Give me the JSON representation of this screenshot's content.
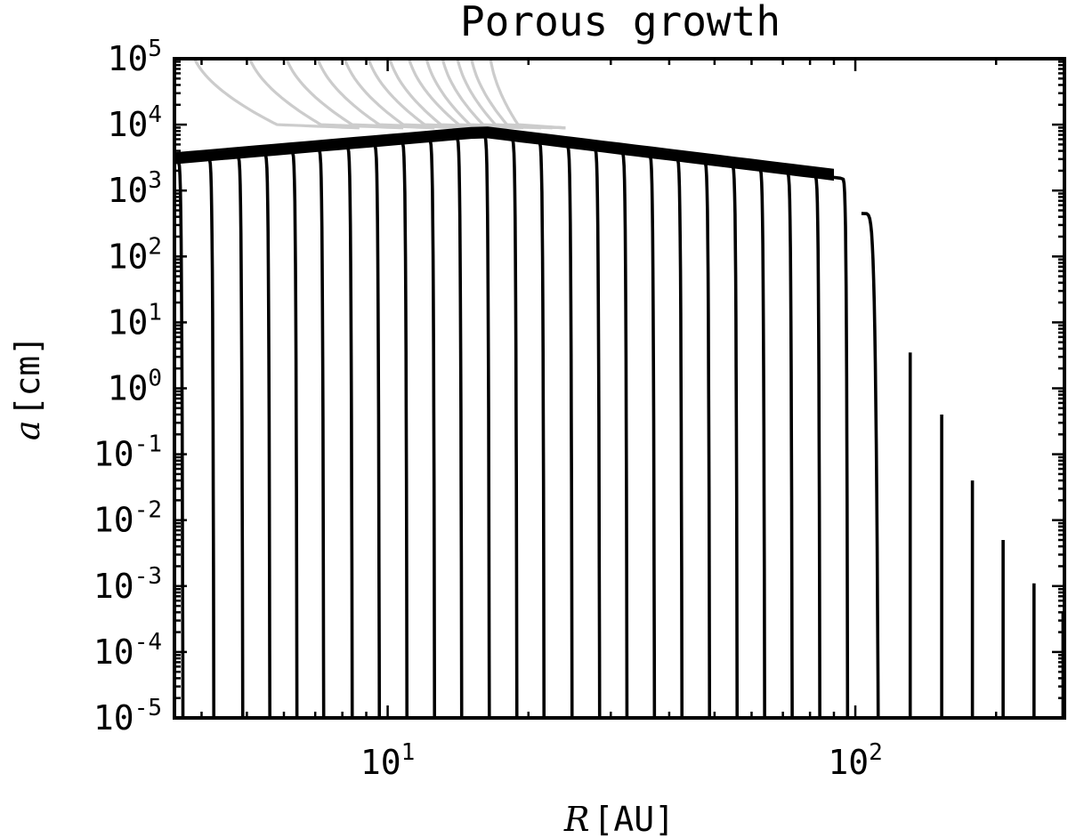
{
  "chart_data": {
    "type": "line",
    "title": "Porous growth",
    "xlabel_var": "R",
    "xlabel_unit": "[AU]",
    "ylabel_var": "a",
    "ylabel_unit": "[cm]",
    "xscale": "log",
    "yscale": "log",
    "xlim": [
      3.5,
      280
    ],
    "ylim": [
      1e-05,
      100000
    ],
    "x_ticks": [
      {
        "base": "10",
        "exp": "1",
        "value": 10
      },
      {
        "base": "10",
        "exp": "2",
        "value": 100
      }
    ],
    "y_ticks": [
      {
        "base": "10",
        "exp": "5",
        "value": 100000
      },
      {
        "base": "10",
        "exp": "4",
        "value": 10000
      },
      {
        "base": "10",
        "exp": "3",
        "value": 1000
      },
      {
        "base": "10",
        "exp": "2",
        "value": 100
      },
      {
        "base": "10",
        "exp": "1",
        "value": 10
      },
      {
        "base": "10",
        "exp": "0",
        "value": 1
      },
      {
        "base": "10",
        "exp": "-1",
        "value": 0.1
      },
      {
        "base": "10",
        "exp": "-2",
        "value": 0.01
      },
      {
        "base": "10",
        "exp": "-3",
        "value": 0.001
      },
      {
        "base": "10",
        "exp": "-4",
        "value": 0.0001
      },
      {
        "base": "10",
        "exp": "-5",
        "value": 1e-05
      }
    ],
    "grid": false,
    "colors": {
      "black_curves": "#000000",
      "gray_curves": "#cccccc"
    },
    "gray_curves": [
      {
        "start_x": 3.8,
        "x_at_1e4": 5.8
      },
      {
        "start_x": 5.0,
        "x_at_1e4": 7.2
      },
      {
        "start_x": 6.0,
        "x_at_1e4": 8.4
      },
      {
        "start_x": 7.0,
        "x_at_1e4": 9.6
      },
      {
        "start_x": 8.0,
        "x_at_1e4": 10.8
      },
      {
        "start_x": 9.0,
        "x_at_1e4": 12.0
      },
      {
        "start_x": 10.0,
        "x_at_1e4": 13.0
      },
      {
        "start_x": 11.0,
        "x_at_1e4": 14.2
      },
      {
        "start_x": 12.0,
        "x_at_1e4": 15.0
      },
      {
        "start_x": 13.0,
        "x_at_1e4": 16.0
      },
      {
        "start_x": 14.0,
        "x_at_1e4": 17.0
      },
      {
        "start_x": 15.0,
        "x_at_1e4": 18.0
      },
      {
        "start_x": 16.5,
        "x_at_1e4": 19.0
      }
    ],
    "black_curves": [
      {
        "x_end": 3.65,
        "a_end": 10000
      },
      {
        "x_end": 4.25,
        "a_end": 10000
      },
      {
        "x_end": 4.9,
        "a_end": 10000
      },
      {
        "x_end": 5.6,
        "a_end": 10000
      },
      {
        "x_end": 6.4,
        "a_end": 10000
      },
      {
        "x_end": 7.3,
        "a_end": 10000
      },
      {
        "x_end": 8.4,
        "a_end": 10000
      },
      {
        "x_end": 9.6,
        "a_end": 10000
      },
      {
        "x_end": 11.0,
        "a_end": 10000
      },
      {
        "x_end": 12.6,
        "a_end": 10000
      },
      {
        "x_end": 14.4,
        "a_end": 10000
      },
      {
        "x_end": 16.5,
        "a_end": 10000
      },
      {
        "x_end": 18.9,
        "a_end": 10000
      },
      {
        "x_end": 21.6,
        "a_end": 10000
      },
      {
        "x_end": 24.8,
        "a_end": 10000
      },
      {
        "x_end": 28.4,
        "a_end": 10000
      },
      {
        "x_end": 32.5,
        "a_end": 10000
      },
      {
        "x_end": 37.2,
        "a_end": 10000
      },
      {
        "x_end": 42.6,
        "a_end": 10000
      },
      {
        "x_end": 48.8,
        "a_end": 10000
      },
      {
        "x_end": 55.9,
        "a_end": 10000
      },
      {
        "x_end": 64.0,
        "a_end": 10000
      },
      {
        "x_end": 73.3,
        "a_end": 10000
      },
      {
        "x_end": 84.0,
        "a_end": 10000
      },
      {
        "x_end": 96.3,
        "a_end": 10000
      },
      {
        "x_end": 112.0,
        "a_end": 450
      },
      {
        "x_end": 131.0,
        "a_end": 3.5
      },
      {
        "x_end": 153.0,
        "a_end": 0.4
      },
      {
        "x_end": 178.0,
        "a_end": 0.04
      },
      {
        "x_end": 207.0,
        "a_end": 0.005
      },
      {
        "x_end": 241.0,
        "a_end": 0.0011
      },
      {
        "x_end": 278.0,
        "a_end": 0.0004
      }
    ]
  }
}
